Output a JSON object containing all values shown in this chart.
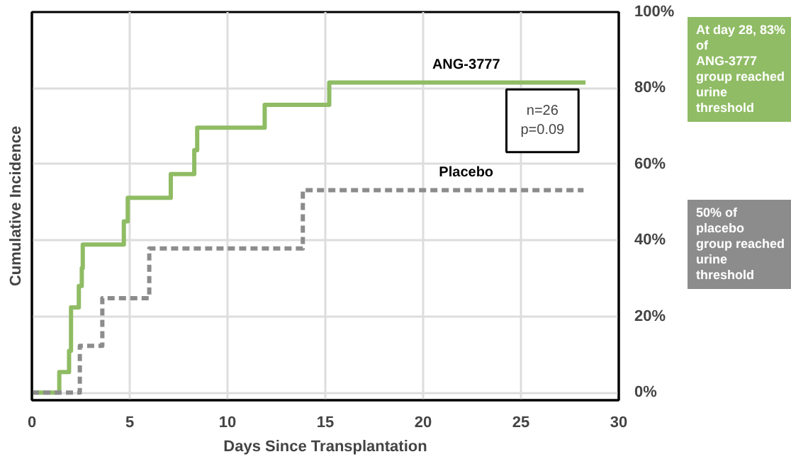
{
  "chart_data": {
    "type": "step",
    "xlabel": "Days Since Transplantation",
    "ylabel": "Cumulative Incidence",
    "xlim": [
      0,
      30
    ],
    "xticks": [
      0,
      5,
      10,
      15,
      20,
      25,
      30
    ],
    "ylim": [
      -2,
      100
    ],
    "yticks": [
      {
        "value": 0,
        "label": "0%"
      },
      {
        "value": 20,
        "label": "20%"
      },
      {
        "value": 40,
        "label": "40%"
      },
      {
        "value": 60,
        "label": "60%"
      },
      {
        "value": 80,
        "label": "80%"
      },
      {
        "value": 100,
        "label": "100%"
      }
    ],
    "grid": true,
    "series": [
      {
        "name": "ANG-3777",
        "color": "#8fbc64",
        "line_style": "solid",
        "x": [
          0,
          1.4,
          1.9,
          2.0,
          2.4,
          2.55,
          2.6,
          4.7,
          4.9,
          7.1,
          8.3,
          8.45,
          11.9,
          15.2,
          28.3
        ],
        "values": [
          0,
          5.4,
          11,
          22.4,
          28,
          32.7,
          38.9,
          45,
          51.2,
          57.4,
          63.7,
          69.6,
          75.6,
          81.5,
          81.5
        ]
      },
      {
        "name": "Placebo",
        "color": "#8c8c8c",
        "line_style": "dashed",
        "x": [
          0,
          2.45,
          3.6,
          6.0,
          13.85,
          28.2
        ],
        "values": [
          0,
          12.3,
          24.8,
          37.9,
          53.2,
          53.2
        ]
      }
    ],
    "annotations": [
      "n=26\np=0.09",
      "At day 28, 83% of\nANG-3777\ngroup reached\nurine threshold",
      "50% of placebo\ngroup reached\nurine threshold"
    ]
  }
}
